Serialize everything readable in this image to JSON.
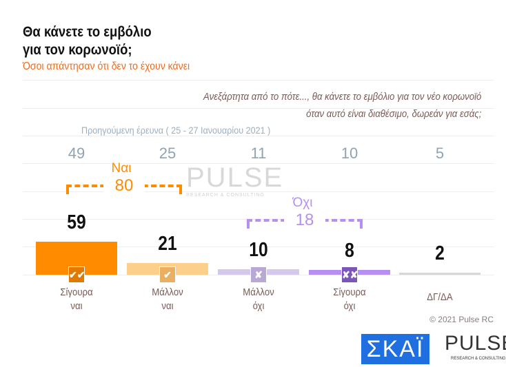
{
  "header": {
    "title_line1": "Θα κάνετε το εμβόλιο",
    "title_line2": "για τον κορωνοϊό;",
    "subtitle": "Όσοι απάντησαν ότι δεν το έχουν κάνει",
    "question_line1": "Ανεξάρτητα από το πότε..., θα κάνετε το εμβόλιο για τον νέο κορωνοϊό",
    "question_line2": "όταν αυτό είναι διαθέσιμο, δωρεάν για εσάς;"
  },
  "chart_data": {
    "type": "bar",
    "categories": [
      "Σίγουρα ναι",
      "Μάλλον ναι",
      "Μάλλον όχι",
      "Σίγουρα όχι",
      "ΔΓ/ΔΑ"
    ],
    "category_lines": [
      [
        "Σίγουρα",
        "ναι"
      ],
      [
        "Μάλλον",
        "ναι"
      ],
      [
        "Μάλλον",
        "όχι"
      ],
      [
        "Σίγουρα",
        "όχι"
      ],
      [
        "ΔΓ/ΔΑ",
        ""
      ]
    ],
    "values": [
      59,
      21,
      10,
      8,
      2
    ],
    "colors": [
      "#ff8c00",
      "#fcd08a",
      "#d4c8ec",
      "#b78ef2",
      "#d6d6d6"
    ],
    "icon_colors": [
      "#e07a00",
      "#e8b060",
      "#b8a8d4",
      "#7c55b8",
      ""
    ],
    "icons": [
      "double-check",
      "check",
      "cross",
      "double-cross",
      ""
    ],
    "icon_text": [
      "✔✔",
      "✔",
      "✘",
      "✘✘",
      ""
    ],
    "previous_label": "Προηγούμενη έρευνα ( 25 - 27 Ιανουαρίου 2021 )",
    "previous_values": [
      49,
      25,
      11,
      10,
      5
    ],
    "groups": [
      {
        "label": "Ναι",
        "total": "80",
        "color": "#ff8c00"
      },
      {
        "label": "Όχι",
        "total": "18",
        "color": "#b78ef2"
      }
    ],
    "grid": true
  },
  "footer": {
    "copyright": "© 2021 Pulse RC",
    "skai_logo": "ΣΚΑΪ",
    "pulse_logo": "PULSE",
    "pulse_tagline": "RESEARCH & CONSULTING"
  },
  "watermark": {
    "text": "PULSE",
    "tagline": "RESEARCH & CONSULTING"
  }
}
